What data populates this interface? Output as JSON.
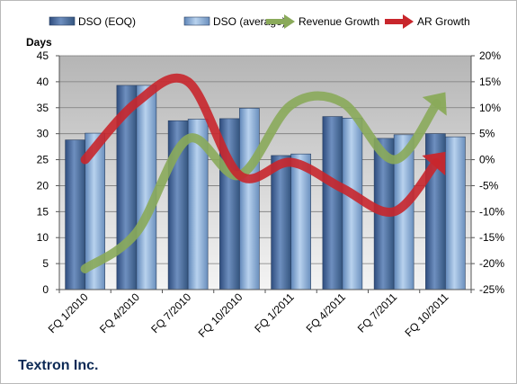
{
  "chart_data": {
    "type": "bar",
    "title": "",
    "ylabel": "Days",
    "ylim": [
      0,
      45
    ],
    "yticks": [
      0,
      5,
      10,
      15,
      20,
      25,
      30,
      35,
      40,
      45
    ],
    "y2lim": [
      -25,
      20
    ],
    "y2ticks": [
      "-25%",
      "-20%",
      "-15%",
      "-10%",
      "-5%",
      "0%",
      "5%",
      "10%",
      "15%",
      "20%"
    ],
    "categories": [
      "FQ 1/2010",
      "FQ 4/2010",
      "FQ 7/2010",
      "FQ 10/2010",
      "FQ 1/2011",
      "FQ 4/2011",
      "FQ 7/2011",
      "FQ 10/2011"
    ],
    "series": [
      {
        "name": "DSO (EOQ)",
        "type": "bar",
        "axis": "left",
        "color": "#4f6f9f",
        "values": [
          28.8,
          39.3,
          32.5,
          32.9,
          25.8,
          33.3,
          29.1,
          30.0
        ]
      },
      {
        "name": "DSO (average)",
        "type": "bar",
        "axis": "left",
        "color": "#8fb2dc",
        "values": [
          30.1,
          39.3,
          32.8,
          34.9,
          26.1,
          33.0,
          29.8,
          29.4
        ]
      },
      {
        "name": "Revenue Growth",
        "type": "line",
        "axis": "right",
        "color": "#8aaa5a",
        "arrow": true,
        "values": [
          -21.0,
          -14.0,
          4.0,
          -3.0,
          10.5,
          11.0,
          0.0,
          13.0
        ]
      },
      {
        "name": "AR Growth",
        "type": "line",
        "axis": "right",
        "color": "#c8262c",
        "arrow": true,
        "values": [
          0.0,
          11.0,
          15.0,
          -3.0,
          -0.5,
          -5.5,
          -10.0,
          1.5
        ]
      }
    ],
    "grid": true,
    "legend": "top"
  },
  "footer": {
    "company": "Textron Inc."
  }
}
